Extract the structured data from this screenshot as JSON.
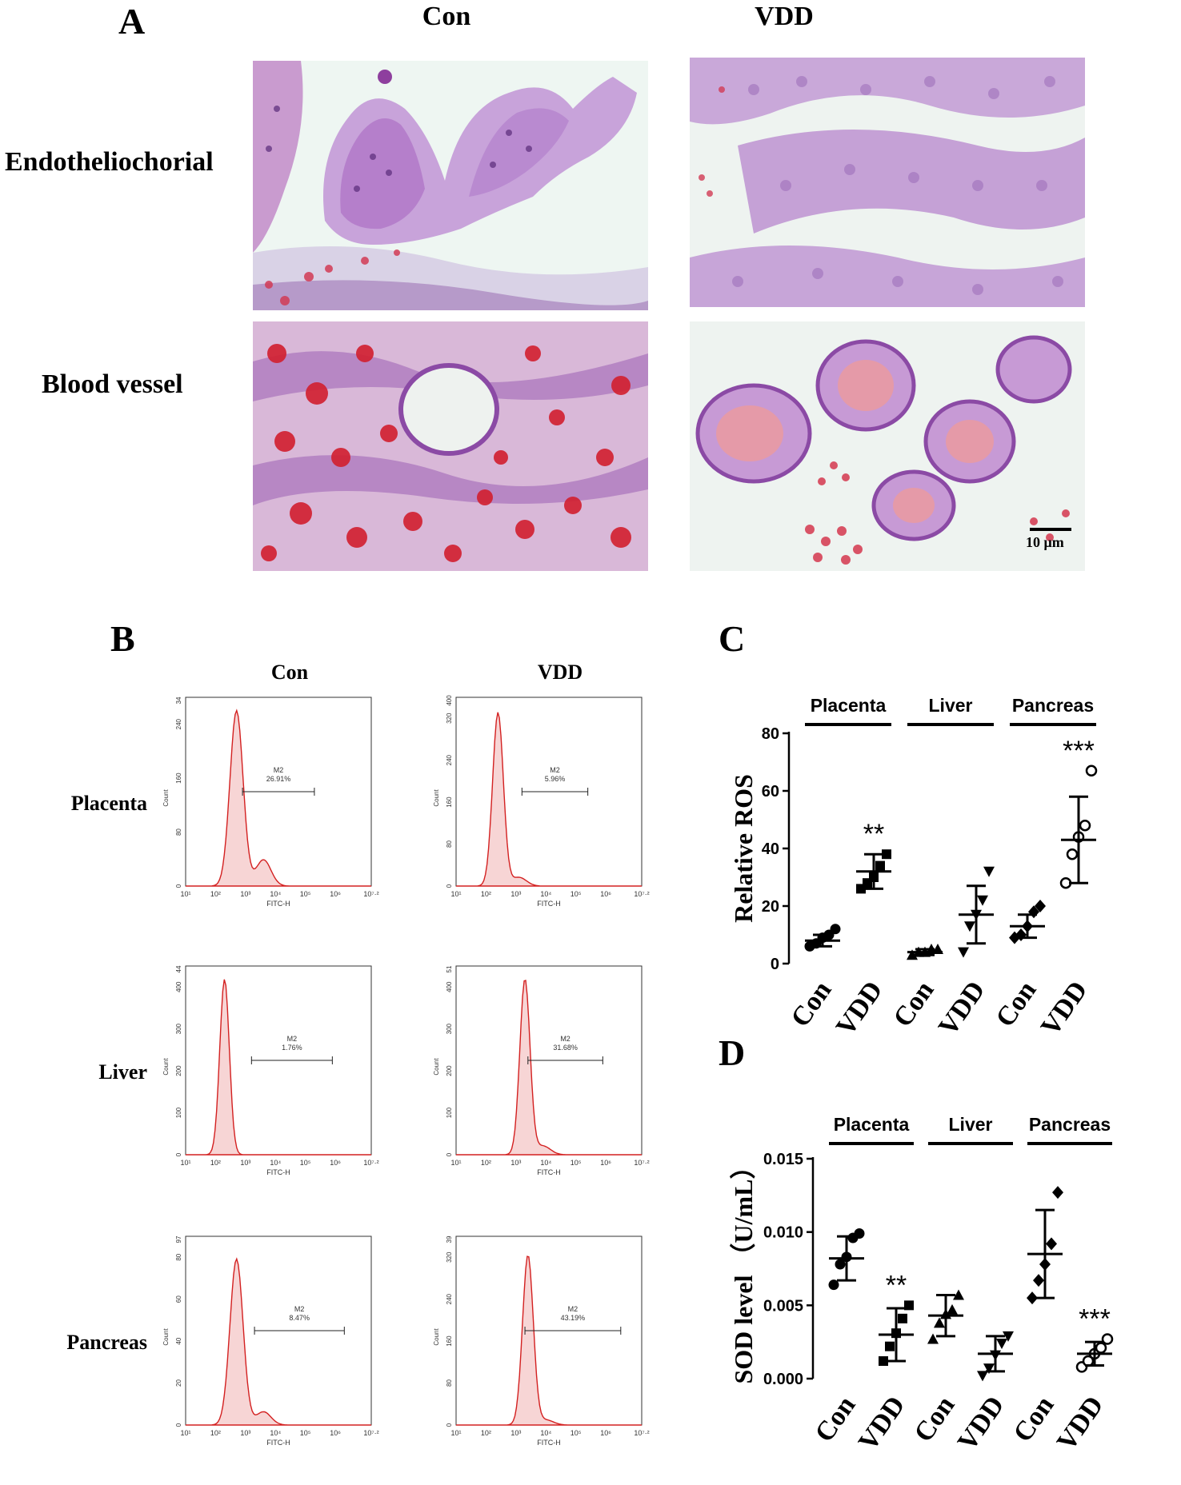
{
  "panel_a": {
    "letter": "A",
    "columns": [
      "Con",
      "VDD"
    ],
    "rows": [
      "Endotheliochorial",
      "Blood vessel"
    ],
    "scale_bar": "10 μm"
  },
  "panel_b": {
    "letter": "B",
    "columns": [
      "Con",
      "VDD"
    ],
    "rows": [
      "Placenta",
      "Liver",
      "Pancreas"
    ],
    "count_label": "Count",
    "x_label": "FITC-H",
    "gate_label": "M2",
    "x_ticks": [
      "10¹",
      "10²",
      "10³",
      "10⁴",
      "10⁵",
      "10⁶",
      "10⁷·²"
    ],
    "histograms": [
      {
        "row": "Placenta",
        "group": "Con",
        "pct": "26.91%",
        "ymax": "34",
        "yticks": [
          "0",
          "80",
          "160",
          "240"
        ]
      },
      {
        "row": "Placenta",
        "group": "VDD",
        "pct": "5.96%",
        "ymax": "400",
        "yticks": [
          "0",
          "80",
          "160",
          "240",
          "320"
        ]
      },
      {
        "row": "Liver",
        "group": "Con",
        "pct": "1.76%",
        "ymax": "44",
        "yticks": [
          "0",
          "100",
          "200",
          "300",
          "400"
        ]
      },
      {
        "row": "Liver",
        "group": "VDD",
        "pct": "31.68%",
        "ymax": "51",
        "yticks": [
          "0",
          "100",
          "200",
          "300",
          "400"
        ]
      },
      {
        "row": "Pancreas",
        "group": "Con",
        "pct": "8.47%",
        "ymax": "97",
        "yticks": [
          "0",
          "20",
          "40",
          "60",
          "80"
        ]
      },
      {
        "row": "Pancreas",
        "group": "VDD",
        "pct": "43.19%",
        "ymax": "39",
        "yticks": [
          "0",
          "80",
          "160",
          "240",
          "320"
        ]
      }
    ]
  },
  "chart_data": [
    {
      "panel": "C",
      "type": "scatter",
      "ylabel": "Relative ROS",
      "ylim": [
        0,
        80
      ],
      "yticks": [
        0,
        20,
        40,
        60,
        80
      ],
      "tissues": [
        "Placenta",
        "Liver",
        "Pancreas"
      ],
      "categories": [
        "Con",
        "VDD",
        "Con",
        "VDD",
        "Con",
        "VDD"
      ],
      "markers": [
        "circle",
        "square",
        "triangle-up",
        "triangle-down",
        "diamond",
        "open-circle"
      ],
      "points": [
        [
          6,
          7,
          9,
          10,
          12
        ],
        [
          26,
          28,
          30,
          34,
          38
        ],
        [
          3,
          4,
          4,
          5,
          5
        ],
        [
          4,
          13,
          17,
          22,
          32
        ],
        [
          9,
          10,
          13,
          18,
          20
        ],
        [
          28,
          38,
          44,
          48,
          67
        ]
      ],
      "mean": [
        8,
        32,
        4,
        17,
        13,
        43
      ],
      "sd": [
        2,
        6,
        1,
        10,
        4,
        15
      ],
      "significance": [
        "",
        "**",
        "",
        "",
        "",
        "***"
      ]
    },
    {
      "panel": "D",
      "type": "scatter",
      "ylabel": "SOD level （U/mL）",
      "ylim": [
        0,
        0.015
      ],
      "yticks": [
        "0.000",
        "0.005",
        "0.010",
        "0.015"
      ],
      "tissues": [
        "Placenta",
        "Liver",
        "Pancreas"
      ],
      "categories": [
        "Con",
        "VDD",
        "Con",
        "VDD",
        "Con",
        "VDD"
      ],
      "markers": [
        "circle",
        "square",
        "triangle-up",
        "triangle-down",
        "diamond",
        "open-circle"
      ],
      "points": [
        [
          0.0064,
          0.0078,
          0.0083,
          0.0096,
          0.0099
        ],
        [
          0.0012,
          0.0022,
          0.0031,
          0.0041,
          0.005
        ],
        [
          0.0027,
          0.0038,
          0.0044,
          0.0047,
          0.0057
        ],
        [
          0.0002,
          0.0007,
          0.0016,
          0.0024,
          0.0029
        ],
        [
          0.0055,
          0.0067,
          0.0078,
          0.0092,
          0.0127
        ],
        [
          0.0008,
          0.0012,
          0.0017,
          0.0021,
          0.0027
        ]
      ],
      "mean": [
        0.0082,
        0.003,
        0.0043,
        0.0017,
        0.0085,
        0.0017
      ],
      "sd": [
        0.0015,
        0.0018,
        0.0014,
        0.0012,
        0.003,
        0.0008
      ],
      "significance": [
        "",
        "**",
        "",
        "",
        "",
        "***"
      ]
    }
  ]
}
